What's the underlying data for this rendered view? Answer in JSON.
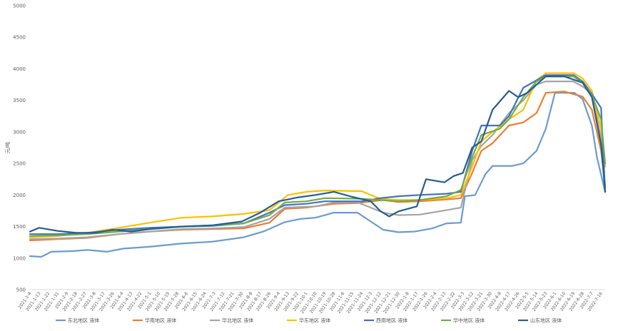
{
  "chart_data": {
    "type": "line",
    "title": "",
    "xlabel": "",
    "ylabel": "元/吨",
    "ylim": [
      500,
      5000
    ],
    "yticks": [
      500,
      1000,
      1500,
      2000,
      2500,
      3000,
      3500,
      4000,
      4500,
      5000
    ],
    "grid": false,
    "legend_position": "bottom",
    "x_tick_labels": [
      "2021-1-4",
      "2021-1-13",
      "2021-1-22",
      "2021-1-31",
      "2021-2-9",
      "2021-2-18",
      "2021-2-27",
      "2021-3-8",
      "2021-3-17",
      "2021-3-26",
      "2021-4-4",
      "2021-4-13",
      "2021-4-22",
      "2021-5-1",
      "2021-5-10",
      "2021-5-19",
      "2021-5-28",
      "2021-6-6",
      "2021-6-15",
      "2021-6-24",
      "2021-7-3",
      "2021-7-12",
      "2021-7-21",
      "2021-7-30",
      "2021-8-8",
      "2021-8-17",
      "2021-8-26",
      "2021-9-4",
      "2021-9-13",
      "2021-9-22",
      "2021-10-1",
      "2021-10-10",
      "2021-10-19",
      "2021-10-28",
      "2021-11-6",
      "2021-11-15",
      "2021-11-24",
      "2021-12-3",
      "2021-12-12",
      "2021-12-21",
      "2021-12-30",
      "2022-1-8",
      "2022-1-17",
      "2022-1-26",
      "2022-2-4",
      "2022-2-13",
      "2022-2-22",
      "2022-3-3",
      "2022-3-12",
      "2022-3-21",
      "2022-3-30",
      "2022-4-8",
      "2022-4-17",
      "2022-4-26",
      "2022-5-5",
      "2022-5-14",
      "2022-5-23",
      "2022-6-1",
      "2022-6-10",
      "2022-6-19",
      "2022-6-28",
      "2022-7-7",
      "2022-7-16"
    ],
    "x_tick_labels_printed": [
      "2021-1-4",
      "2021-1-13",
      "2021-1-22",
      "2021-1-31",
      "2021-2-9",
      "2021-2-18",
      "2021-2-27",
      "2021-3-8",
      "2021-3-17",
      "2021-3-26",
      "2021-4-4",
      "2021-4-13",
      "2021-4-22",
      "2021-5-1",
      "2021-5-10",
      "2021-5-19",
      "2021-5-28",
      "2021-6-6",
      "2021-6-15",
      "2021-6-24",
      "2021-7-3",
      "2021-7-12",
      "2021-7-21",
      "2021-7-30",
      "2021-8-8",
      "2021-8-17",
      "2021-8-26",
      "2021-9-4",
      "2021-9-13",
      "2021-9-22",
      "2021-10-1",
      "2021-10-10",
      "2021-10-19",
      "2021-10-28",
      "2021-11-6",
      "2021-11-15",
      "2021-11-24",
      "2021-12-3",
      "2021-12-12",
      "2021-12-21",
      "2021-12-30",
      "2022-1-8",
      "2022-1-17",
      "2022-1-26",
      "2022-2-4",
      "2022-2-13",
      "2022-2-22",
      "2022-3-3",
      "2022-3-12",
      "2022-3-21",
      "2022-3-30",
      "2022-4-8",
      "2022-4-17",
      "2022-4-26",
      "2022-5-5",
      "2022-5-14",
      "2022-5-23",
      "2022-6-1",
      "2022-6-10",
      "2022-6-19",
      "2022-6-28",
      "2022-7-7",
      "2022-7-16"
    ],
    "x_span": [
      "2021-1-4",
      "2022-7-20"
    ],
    "series": [
      {
        "name": "东北地区 液体",
        "color": "#6b9bd1",
        "points": [
          [
            "2021-1-4",
            1030
          ],
          [
            "2021-1-15",
            1020
          ],
          [
            "2021-1-25",
            1100
          ],
          [
            "2021-2-15",
            1110
          ],
          [
            "2021-3-1",
            1130
          ],
          [
            "2021-3-20",
            1100
          ],
          [
            "2021-4-5",
            1150
          ],
          [
            "2021-5-1",
            1180
          ],
          [
            "2021-6-1",
            1230
          ],
          [
            "2021-7-1",
            1260
          ],
          [
            "2021-8-1",
            1330
          ],
          [
            "2021-8-20",
            1420
          ],
          [
            "2021-9-10",
            1570
          ],
          [
            "2021-9-25",
            1620
          ],
          [
            "2021-10-10",
            1640
          ],
          [
            "2021-10-28",
            1720
          ],
          [
            "2021-11-20",
            1720
          ],
          [
            "2021-12-3",
            1580
          ],
          [
            "2021-12-15",
            1450
          ],
          [
            "2021-12-30",
            1410
          ],
          [
            "2022-1-15",
            1420
          ],
          [
            "2022-2-1",
            1470
          ],
          [
            "2022-2-15",
            1550
          ],
          [
            "2022-3-1",
            1560
          ],
          [
            "2022-3-5",
            1980
          ],
          [
            "2022-3-15",
            2000
          ],
          [
            "2022-3-25",
            2330
          ],
          [
            "2022-4-1",
            2460
          ],
          [
            "2022-4-20",
            2460
          ],
          [
            "2022-5-1",
            2500
          ],
          [
            "2022-5-14",
            2700
          ],
          [
            "2022-5-23",
            3050
          ],
          [
            "2022-6-1",
            3620
          ],
          [
            "2022-6-20",
            3620
          ],
          [
            "2022-6-28",
            3520
          ],
          [
            "2022-7-7",
            3100
          ],
          [
            "2022-7-12",
            2600
          ],
          [
            "2022-7-20",
            2050
          ]
        ]
      },
      {
        "name": "华南地区 液体",
        "color": "#ed7d31",
        "points": [
          [
            "2021-1-4",
            1280
          ],
          [
            "2021-2-1",
            1300
          ],
          [
            "2021-3-1",
            1320
          ],
          [
            "2021-4-1",
            1380
          ],
          [
            "2021-5-1",
            1420
          ],
          [
            "2021-6-1",
            1450
          ],
          [
            "2021-7-1",
            1460
          ],
          [
            "2021-8-1",
            1470
          ],
          [
            "2021-8-26",
            1560
          ],
          [
            "2021-9-10",
            1780
          ],
          [
            "2021-10-1",
            1800
          ],
          [
            "2021-10-28",
            1860
          ],
          [
            "2021-11-20",
            1870
          ],
          [
            "2021-12-15",
            1920
          ],
          [
            "2021-12-30",
            1890
          ],
          [
            "2022-1-20",
            1900
          ],
          [
            "2022-2-15",
            1930
          ],
          [
            "2022-3-1",
            1950
          ],
          [
            "2022-3-12",
            2350
          ],
          [
            "2022-3-21",
            2700
          ],
          [
            "2022-4-1",
            2820
          ],
          [
            "2022-4-17",
            3100
          ],
          [
            "2022-5-1",
            3150
          ],
          [
            "2022-5-14",
            3300
          ],
          [
            "2022-5-23",
            3620
          ],
          [
            "2022-6-10",
            3640
          ],
          [
            "2022-6-28",
            3560
          ],
          [
            "2022-7-7",
            3350
          ],
          [
            "2022-7-16",
            2700
          ],
          [
            "2022-7-20",
            2150
          ]
        ]
      },
      {
        "name": "华北地区 液体",
        "color": "#a5a5a5",
        "points": [
          [
            "2021-1-4",
            1300
          ],
          [
            "2021-2-1",
            1310
          ],
          [
            "2021-3-1",
            1330
          ],
          [
            "2021-4-1",
            1380
          ],
          [
            "2021-5-1",
            1420
          ],
          [
            "2021-6-1",
            1460
          ],
          [
            "2021-7-1",
            1470
          ],
          [
            "2021-8-1",
            1490
          ],
          [
            "2021-8-26",
            1620
          ],
          [
            "2021-9-10",
            1800
          ],
          [
            "2021-10-10",
            1820
          ],
          [
            "2021-10-28",
            1880
          ],
          [
            "2021-11-20",
            1880
          ],
          [
            "2021-12-3",
            1800
          ],
          [
            "2021-12-15",
            1720
          ],
          [
            "2021-12-30",
            1680
          ],
          [
            "2022-1-20",
            1690
          ],
          [
            "2022-2-15",
            1760
          ],
          [
            "2022-3-1",
            1800
          ],
          [
            "2022-3-12",
            2550
          ],
          [
            "2022-3-21",
            2780
          ],
          [
            "2022-4-1",
            2950
          ],
          [
            "2022-4-17",
            3300
          ],
          [
            "2022-5-1",
            3500
          ],
          [
            "2022-5-14",
            3750
          ],
          [
            "2022-5-23",
            3800
          ],
          [
            "2022-6-19",
            3800
          ],
          [
            "2022-6-28",
            3720
          ],
          [
            "2022-7-7",
            3600
          ],
          [
            "2022-7-16",
            2900
          ],
          [
            "2022-7-20",
            2100
          ]
        ]
      },
      {
        "name": "华东地区 液体",
        "color": "#ffc000",
        "points": [
          [
            "2021-1-4",
            1330
          ],
          [
            "2021-2-1",
            1350
          ],
          [
            "2021-3-1",
            1400
          ],
          [
            "2021-4-1",
            1480
          ],
          [
            "2021-5-1",
            1560
          ],
          [
            "2021-6-1",
            1640
          ],
          [
            "2021-7-1",
            1660
          ],
          [
            "2021-8-1",
            1700
          ],
          [
            "2021-8-26",
            1760
          ],
          [
            "2021-9-13",
            2000
          ],
          [
            "2021-10-1",
            2050
          ],
          [
            "2021-10-19",
            2070
          ],
          [
            "2021-11-24",
            2060
          ],
          [
            "2021-12-3",
            2000
          ],
          [
            "2021-12-12",
            1940
          ],
          [
            "2021-12-30",
            1920
          ],
          [
            "2022-1-20",
            1920
          ],
          [
            "2022-2-15",
            1950
          ],
          [
            "2022-3-1",
            2000
          ],
          [
            "2022-3-12",
            2450
          ],
          [
            "2022-3-21",
            2850
          ],
          [
            "2022-4-1",
            3000
          ],
          [
            "2022-4-17",
            3200
          ],
          [
            "2022-5-1",
            3350
          ],
          [
            "2022-5-14",
            3820
          ],
          [
            "2022-5-23",
            3930
          ],
          [
            "2022-6-19",
            3930
          ],
          [
            "2022-6-28",
            3850
          ],
          [
            "2022-7-7",
            3650
          ],
          [
            "2022-7-16",
            3050
          ],
          [
            "2022-7-20",
            2450
          ]
        ]
      },
      {
        "name": "西南地区 液体",
        "color": "#4472c4",
        "points": [
          [
            "2021-1-4",
            1380
          ],
          [
            "2021-2-1",
            1380
          ],
          [
            "2021-3-1",
            1400
          ],
          [
            "2021-4-1",
            1450
          ],
          [
            "2021-5-1",
            1480
          ],
          [
            "2021-6-1",
            1500
          ],
          [
            "2021-7-1",
            1510
          ],
          [
            "2021-8-1",
            1550
          ],
          [
            "2021-8-26",
            1720
          ],
          [
            "2021-9-10",
            1840
          ],
          [
            "2021-10-1",
            1860
          ],
          [
            "2021-10-19",
            1900
          ],
          [
            "2021-11-24",
            1900
          ],
          [
            "2021-12-12",
            1950
          ],
          [
            "2021-12-30",
            1980
          ],
          [
            "2022-1-20",
            2000
          ],
          [
            "2022-2-15",
            2020
          ],
          [
            "2022-3-1",
            2050
          ],
          [
            "2022-3-12",
            2700
          ],
          [
            "2022-3-21",
            3100
          ],
          [
            "2022-4-8",
            3100
          ],
          [
            "2022-4-17",
            3250
          ],
          [
            "2022-5-1",
            3700
          ],
          [
            "2022-5-23",
            3900
          ],
          [
            "2022-6-19",
            3900
          ],
          [
            "2022-6-28",
            3800
          ],
          [
            "2022-7-7",
            3600
          ],
          [
            "2022-7-16",
            3380
          ],
          [
            "2022-7-20",
            2050
          ]
        ]
      },
      {
        "name": "华中地区 液体",
        "color": "#70ad47",
        "points": [
          [
            "2021-1-4",
            1350
          ],
          [
            "2021-2-1",
            1360
          ],
          [
            "2021-3-1",
            1380
          ],
          [
            "2021-4-1",
            1420
          ],
          [
            "2021-5-1",
            1460
          ],
          [
            "2021-6-1",
            1500
          ],
          [
            "2021-7-1",
            1520
          ],
          [
            "2021-8-1",
            1550
          ],
          [
            "2021-8-26",
            1680
          ],
          [
            "2021-9-10",
            1880
          ],
          [
            "2021-10-1",
            1900
          ],
          [
            "2021-10-19",
            1950
          ],
          [
            "2021-11-24",
            1940
          ],
          [
            "2021-12-12",
            1920
          ],
          [
            "2021-12-30",
            1900
          ],
          [
            "2022-1-20",
            1920
          ],
          [
            "2022-2-15",
            1980
          ],
          [
            "2022-3-1",
            2080
          ],
          [
            "2022-3-12",
            2600
          ],
          [
            "2022-3-21",
            2950
          ],
          [
            "2022-4-8",
            3050
          ],
          [
            "2022-4-17",
            3200
          ],
          [
            "2022-5-1",
            3550
          ],
          [
            "2022-5-14",
            3800
          ],
          [
            "2022-5-23",
            3880
          ],
          [
            "2022-6-19",
            3880
          ],
          [
            "2022-6-28",
            3780
          ],
          [
            "2022-7-7",
            3580
          ],
          [
            "2022-7-16",
            3200
          ],
          [
            "2022-7-20",
            2500
          ]
        ]
      },
      {
        "name": "山东地区 液体",
        "color": "#255e91",
        "points": [
          [
            "2021-1-4",
            1420
          ],
          [
            "2021-1-13",
            1480
          ],
          [
            "2021-1-31",
            1430
          ],
          [
            "2021-2-18",
            1400
          ],
          [
            "2021-3-8",
            1400
          ],
          [
            "2021-3-26",
            1450
          ],
          [
            "2021-4-13",
            1420
          ],
          [
            "2021-5-1",
            1460
          ],
          [
            "2021-6-1",
            1500
          ],
          [
            "2021-7-1",
            1520
          ],
          [
            "2021-7-30",
            1580
          ],
          [
            "2021-8-17",
            1720
          ],
          [
            "2021-9-4",
            1900
          ],
          [
            "2021-9-22",
            1960
          ],
          [
            "2021-10-10",
            2000
          ],
          [
            "2021-10-28",
            2050
          ],
          [
            "2021-11-15",
            1970
          ],
          [
            "2021-12-3",
            1900
          ],
          [
            "2021-12-12",
            1750
          ],
          [
            "2021-12-21",
            1660
          ],
          [
            "2021-12-30",
            1740
          ],
          [
            "2022-1-17",
            1820
          ],
          [
            "2022-1-26",
            2250
          ],
          [
            "2022-2-13",
            2200
          ],
          [
            "2022-2-22",
            2300
          ],
          [
            "2022-3-3",
            2350
          ],
          [
            "2022-3-12",
            2750
          ],
          [
            "2022-3-21",
            2850
          ],
          [
            "2022-4-1",
            3350
          ],
          [
            "2022-4-17",
            3650
          ],
          [
            "2022-4-26",
            3550
          ],
          [
            "2022-5-5",
            3620
          ],
          [
            "2022-5-14",
            3750
          ],
          [
            "2022-5-23",
            3880
          ],
          [
            "2022-6-10",
            3880
          ],
          [
            "2022-6-28",
            3780
          ],
          [
            "2022-7-7",
            3550
          ],
          [
            "2022-7-16",
            2800
          ],
          [
            "2022-7-20",
            2050
          ]
        ]
      }
    ]
  }
}
